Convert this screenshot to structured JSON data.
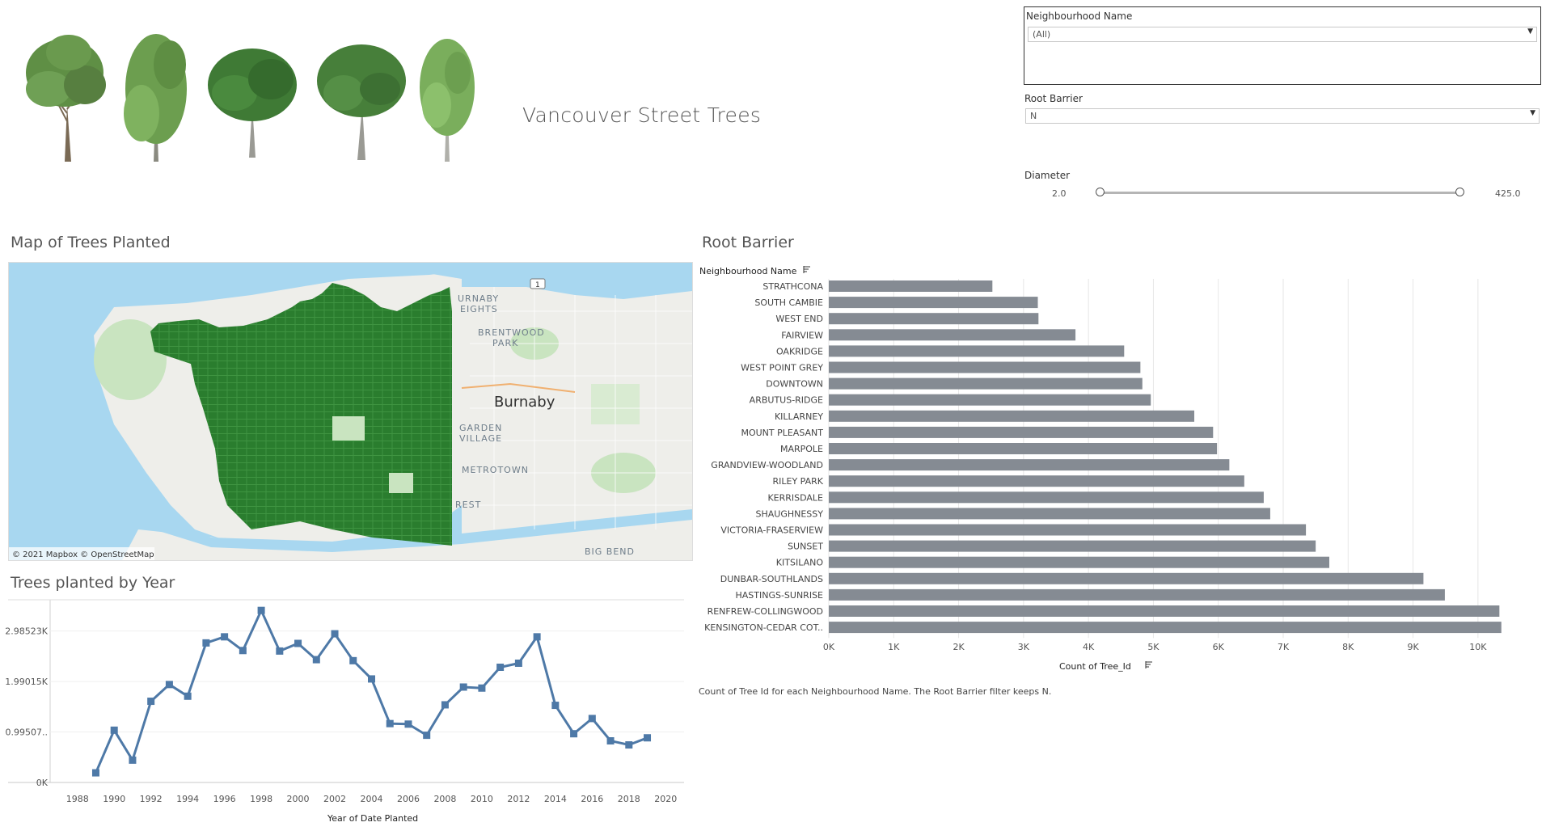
{
  "header": {
    "title": "Vancouver Street Trees"
  },
  "filters": {
    "neighbourhood": {
      "label": "Neighbourhood Name",
      "value": "(All)"
    },
    "root_barrier": {
      "label": "Root Barrier",
      "value": "N"
    },
    "diameter": {
      "label": "Diameter",
      "min_label": "2.0",
      "max_label": "425.0",
      "min": 2.0,
      "max": 425.0
    }
  },
  "map": {
    "title": "Map of Trees Planted",
    "attribution": "© 2021 Mapbox © OpenStreetMap",
    "labels": {
      "burnaby": "Burnaby",
      "brentwood": "BRENTWOOD",
      "brentwood2": "PARK",
      "garden": "GARDEN",
      "village": "VILLAGE",
      "metrotown": "METROTOWN",
      "bigbend": "BIG BEND",
      "heights1": "URNABY",
      "heights2": "EIGHTS",
      "rest": "REST",
      "highway": "1"
    },
    "colors": {
      "water": "#a8d7f0",
      "land": "#eeeeea",
      "park": "#c9e4c0",
      "trees": "#2a7d2e"
    }
  },
  "bar_chart": {
    "title": "Root Barrier",
    "row_header": "Neighbourhood Name",
    "caption": "Count of Tree Id for each Neighbourhood Name. The Root Barrier filter keeps N.",
    "axis_title": "Count of Tree_Id",
    "ticks": [
      "0K",
      "1K",
      "2K",
      "3K",
      "4K",
      "5K",
      "6K",
      "7K",
      "8K",
      "9K",
      "10K"
    ]
  },
  "line_chart": {
    "title": "Trees planted by Year",
    "axis_title": "Year of Date Planted",
    "y_ticks": [
      "0K",
      "0.99507..",
      "1.99015K",
      "2.98523K"
    ],
    "x_ticks": [
      "1988",
      "1990",
      "1992",
      "1994",
      "1996",
      "1998",
      "2000",
      "2002",
      "2004",
      "2006",
      "2008",
      "2010",
      "2012",
      "2014",
      "2016",
      "2018",
      "2020"
    ]
  },
  "chart_data": [
    {
      "type": "bar",
      "orientation": "horizontal",
      "title": "Root Barrier",
      "xlabel": "Count of Tree_Id",
      "ylabel": "Neighbourhood Name",
      "xlim": [
        0,
        10500
      ],
      "grid": true,
      "color": "#858b93",
      "categories": [
        "STRATHCONA",
        "SOUTH CAMBIE",
        "WEST END",
        "FAIRVIEW",
        "OAKRIDGE",
        "WEST POINT GREY",
        "DOWNTOWN",
        "ARBUTUS-RIDGE",
        "KILLARNEY",
        "MOUNT PLEASANT",
        "MARPOLE",
        "GRANDVIEW-WOODLAND",
        "RILEY PARK",
        "KERRISDALE",
        "SHAUGHNESSY",
        "VICTORIA-FRASERVIEW",
        "SUNSET",
        "KITSILANO",
        "DUNBAR-SOUTHLANDS",
        "HASTINGS-SUNRISE",
        "RENFREW-COLLINGWOOD",
        "KENSINGTON-CEDAR COT.."
      ],
      "values": [
        2520,
        3220,
        3230,
        3800,
        4550,
        4800,
        4830,
        4960,
        5630,
        5920,
        5980,
        6170,
        6400,
        6700,
        6800,
        7350,
        7500,
        7710,
        9160,
        9490,
        10330,
        10360
      ]
    },
    {
      "type": "line",
      "title": "Trees planted by Year",
      "xlabel": "Year of Date Planted",
      "ylabel": "",
      "xlim": [
        1987,
        2021
      ],
      "ylim": [
        0,
        3600
      ],
      "grid": true,
      "color": "#4e79a7",
      "x": [
        1989,
        1990,
        1991,
        1992,
        1993,
        1994,
        1995,
        1996,
        1997,
        1998,
        1999,
        2000,
        2001,
        2002,
        2003,
        2004,
        2005,
        2006,
        2007,
        2008,
        2009,
        2010,
        2011,
        2012,
        2013,
        2014,
        2015,
        2016,
        2017,
        2018,
        2019
      ],
      "values": [
        190,
        1030,
        440,
        1600,
        1930,
        1700,
        2750,
        2870,
        2600,
        3390,
        2590,
        2740,
        2420,
        2930,
        2400,
        2040,
        1160,
        1150,
        930,
        1530,
        1880,
        1860,
        2270,
        2350,
        2870,
        1520,
        960,
        1260,
        820,
        740,
        880
      ]
    }
  ]
}
